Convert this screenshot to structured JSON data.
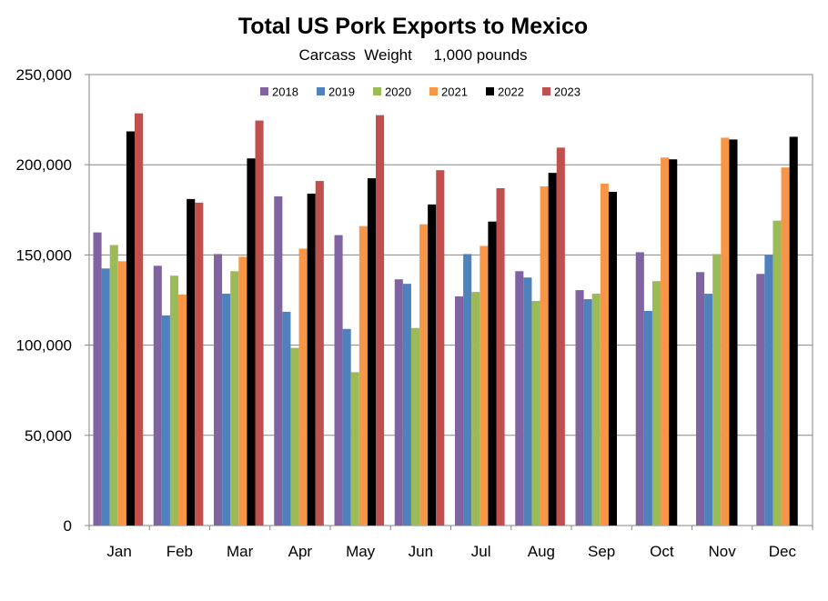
{
  "chart_data": {
    "type": "bar",
    "title": "Total US Pork Exports to Mexico",
    "subtitle": "Carcass  Weight     1,000 pounds",
    "xlabel": "",
    "ylabel": "",
    "ylim": [
      0,
      250000
    ],
    "yticks": [
      0,
      50000,
      100000,
      150000,
      200000,
      250000
    ],
    "ytick_labels": [
      "0",
      "50,000",
      "100,000",
      "150,000",
      "200,000",
      "250,000"
    ],
    "grid": true,
    "legend_position": "top-center",
    "categories": [
      "Jan",
      "Feb",
      "Mar",
      "Apr",
      "May",
      "Jun",
      "Jul",
      "Aug",
      "Sep",
      "Oct",
      "Nov",
      "Dec"
    ],
    "series": [
      {
        "name": "2018",
        "color": "#8064A2",
        "values": [
          162500,
          144000,
          150500,
          182500,
          161000,
          136500,
          127000,
          141000,
          130500,
          151500,
          140500,
          139500
        ]
      },
      {
        "name": "2019",
        "color": "#4F81BD",
        "values": [
          142500,
          116500,
          128500,
          118500,
          109000,
          134000,
          150500,
          137500,
          125500,
          119000,
          128500,
          150000
        ]
      },
      {
        "name": "2020",
        "color": "#9BBB59",
        "values": [
          155500,
          138500,
          141000,
          98500,
          85000,
          109500,
          129500,
          124500,
          128500,
          135500,
          150500,
          169000
        ]
      },
      {
        "name": "2021",
        "color": "#F79646",
        "values": [
          146500,
          128000,
          149000,
          153500,
          166000,
          167000,
          155000,
          188000,
          189500,
          204000,
          215000,
          198500
        ]
      },
      {
        "name": "2022",
        "color": "#000000",
        "values": [
          218500,
          181000,
          203500,
          184000,
          192500,
          178000,
          168500,
          195500,
          185000,
          203000,
          214000,
          215500
        ]
      },
      {
        "name": "2023",
        "color": "#C0504D",
        "values": [
          228500,
          179000,
          224500,
          191000,
          227500,
          197000,
          187000,
          209500,
          null,
          null,
          null,
          null
        ]
      }
    ]
  }
}
